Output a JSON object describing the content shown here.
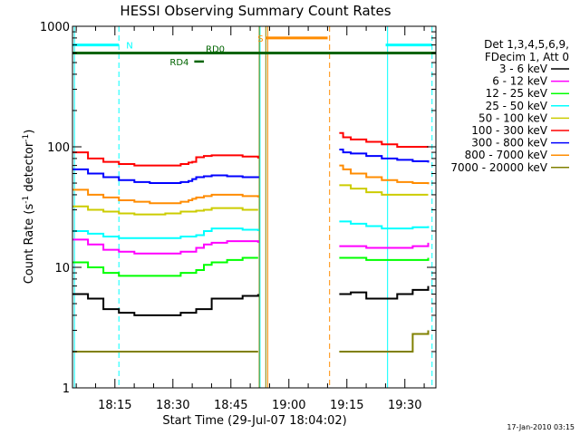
{
  "chart_data": {
    "type": "line",
    "title": "HESSI Observing Summary Count Rates",
    "xlabel": "Start Time (29-Jul-07 18:04:02)",
    "ylabel_main": "Count Rate (s",
    "ylabel_sup1": "-1",
    "ylabel_mid": " detector",
    "ylabel_sup2": "-1",
    "ylabel_end": ")",
    "yscale": "log",
    "ylim": [
      1,
      1000
    ],
    "xlim_minutes": [
      0,
      94
    ],
    "x_ticks": [
      {
        "label": "18:15",
        "min": 10.97
      },
      {
        "label": "18:30",
        "min": 25.97
      },
      {
        "label": "18:45",
        "min": 40.97
      },
      {
        "label": "19:00",
        "min": 55.97
      },
      {
        "label": "19:15",
        "min": 70.97
      },
      {
        "label": "19:30",
        "min": 85.97
      }
    ],
    "y_ticks": [
      {
        "label": "1",
        "value": 1
      },
      {
        "label": "10",
        "value": 10
      },
      {
        "label": "100",
        "value": 100
      },
      {
        "label": "1000",
        "value": 1000
      }
    ],
    "legend": {
      "header": [
        "Det 1,3,4,5,6,9,",
        "FDecim 1, Att 0"
      ],
      "placement": "right"
    },
    "series": [
      {
        "name": "3 - 6 keV",
        "color": "#000000",
        "segments": [
          {
            "x": [
              0,
              4,
              8,
              12,
              16,
              20,
              24,
              28,
              32,
              36,
              40,
              44,
              48
            ],
            "y": [
              6,
              5.5,
              4.5,
              4.2,
              4.0,
              4.0,
              4.0,
              4.2,
              4.5,
              5.5,
              5.5,
              5.8,
              6
            ]
          },
          {
            "x": [
              69,
              72,
              76,
              80,
              84,
              88,
              92
            ],
            "y": [
              6,
              6.2,
              5.5,
              5.5,
              6,
              6.5,
              7
            ]
          }
        ]
      },
      {
        "name": "6 - 12 keV",
        "color": "#ff00ff",
        "segments": [
          {
            "x": [
              0,
              4,
              8,
              12,
              16,
              20,
              24,
              28,
              32,
              34,
              36,
              40,
              44,
              48
            ],
            "y": [
              17,
              15.5,
              14,
              13.5,
              13,
              13,
              13,
              13.5,
              14.5,
              15.5,
              16,
              16.5,
              16.5,
              16
            ]
          },
          {
            "x": [
              69,
              72,
              76,
              80,
              84,
              88,
              92
            ],
            "y": [
              15,
              15,
              14.5,
              14.5,
              14.5,
              15,
              16
            ]
          }
        ]
      },
      {
        "name": "12 - 25 keV",
        "color": "#00ff00",
        "segments": [
          {
            "x": [
              0,
              4,
              8,
              12,
              16,
              20,
              24,
              28,
              32,
              34,
              36,
              40,
              44,
              48
            ],
            "y": [
              11,
              10,
              9,
              8.5,
              8.5,
              8.5,
              8.5,
              9,
              9.5,
              10.5,
              11,
              11.5,
              12,
              12
            ]
          },
          {
            "x": [
              69,
              72,
              76,
              80,
              84,
              88,
              92
            ],
            "y": [
              12,
              12,
              11.5,
              11.5,
              11.5,
              11.5,
              12
            ]
          }
        ]
      },
      {
        "name": "25 - 50 keV",
        "color": "#00ffff",
        "segments": [
          {
            "x": [
              0,
              4,
              8,
              12,
              16,
              20,
              24,
              28,
              32,
              34,
              36,
              40,
              44,
              48
            ],
            "y": [
              20,
              19,
              18,
              17.5,
              17.5,
              17.5,
              17.5,
              18,
              18.5,
              20,
              21,
              21,
              20.5,
              20
            ]
          },
          {
            "x": [
              69,
              72,
              76,
              80,
              84,
              88,
              92
            ],
            "y": [
              24,
              23,
              22,
              21,
              21,
              21.5,
              22
            ]
          }
        ]
      },
      {
        "name": "50 - 100 keV",
        "color": "#cccc00",
        "segments": [
          {
            "x": [
              0,
              4,
              8,
              12,
              16,
              20,
              24,
              28,
              32,
              34,
              36,
              40,
              44,
              48
            ],
            "y": [
              32,
              30,
              29,
              28,
              27.5,
              27.5,
              28,
              29,
              29.5,
              30,
              31,
              31,
              30,
              30
            ]
          },
          {
            "x": [
              69,
              72,
              76,
              80,
              84,
              88,
              92
            ],
            "y": [
              48,
              45,
              42,
              40,
              40,
              40,
              40
            ]
          }
        ]
      },
      {
        "name": "100 - 300 keV",
        "color": "#ff0000",
        "segments": [
          {
            "x": [
              0,
              4,
              8,
              12,
              16,
              20,
              24,
              28,
              30,
              31,
              32,
              34,
              36,
              40,
              44,
              48
            ],
            "y": [
              90,
              80,
              75,
              72,
              70,
              70,
              70,
              72,
              74,
              75,
              82,
              84,
              85,
              85,
              83,
              80
            ]
          },
          {
            "x": [
              69,
              70,
              72,
              76,
              80,
              84,
              88,
              92
            ],
            "y": [
              130,
              120,
              115,
              110,
              105,
              100,
              100,
              100
            ]
          }
        ]
      },
      {
        "name": "300 - 800 keV",
        "color": "#0000ff",
        "segments": [
          {
            "x": [
              0,
              4,
              8,
              12,
              16,
              20,
              24,
              28,
              30,
              31,
              32,
              34,
              36,
              40,
              44,
              48
            ],
            "y": [
              65,
              60,
              56,
              53,
              51,
              50,
              50,
              51,
              52,
              54,
              56,
              57,
              58,
              57,
              56,
              55
            ]
          },
          {
            "x": [
              69,
              70,
              72,
              76,
              80,
              84,
              88,
              92
            ],
            "y": [
              95,
              90,
              88,
              84,
              80,
              78,
              76,
              74
            ]
          }
        ]
      },
      {
        "name": "800 - 7000 keV",
        "color": "#ff8c00",
        "segments": [
          {
            "x": [
              0,
              4,
              8,
              12,
              16,
              20,
              24,
              28,
              30,
              31,
              32,
              34,
              36,
              40,
              44,
              48
            ],
            "y": [
              44,
              40,
              38,
              36,
              35,
              34,
              34,
              35,
              36,
              37,
              38,
              39,
              40,
              40,
              39,
              38
            ]
          },
          {
            "x": [
              69,
              70,
              72,
              76,
              80,
              84,
              88,
              92
            ],
            "y": [
              70,
              65,
              60,
              56,
              53,
              51,
              50,
              49
            ]
          }
        ]
      },
      {
        "name": "7000 - 20000 keV",
        "color": "#808000",
        "segments": [
          {
            "x": [
              0,
              4,
              8,
              12,
              16,
              20,
              24,
              28,
              32,
              36,
              40,
              44,
              48
            ],
            "y": [
              2,
              2,
              2,
              2,
              2,
              2,
              2,
              2,
              2,
              2,
              2,
              2,
              2
            ]
          },
          {
            "x": [
              69,
              72,
              76,
              80,
              84,
              88,
              92
            ],
            "y": [
              2,
              2,
              2,
              2,
              2,
              2.8,
              3
            ]
          }
        ]
      }
    ],
    "annotations": [
      {
        "label": "N",
        "color": "#00ffff",
        "y": 700,
        "x_start": 0,
        "x_end": 12,
        "x2_start": 81,
        "x2_end": 93
      },
      {
        "label": "S",
        "color": "#ff8c00",
        "y": 800,
        "x_start": 50,
        "x_end": 66
      },
      {
        "label": "RD0",
        "color": "#006400",
        "y": 600,
        "x_start": 0,
        "x_end": 94
      },
      {
        "label": "RD4",
        "color": "#006400",
        "y": 510,
        "x_start": 31.5,
        "x_end": 34
      }
    ],
    "vertical_lines": [
      {
        "x": 0.5,
        "color": "#00ffff",
        "style": "solid"
      },
      {
        "x": 12,
        "color": "#00ffff",
        "style": "dashed"
      },
      {
        "x": 48.5,
        "color": "#00ffff",
        "style": "solid"
      },
      {
        "x": 50.5,
        "color": "#ff8c00",
        "style": "solid"
      },
      {
        "x": 66.5,
        "color": "#ff8c00",
        "style": "dashed"
      },
      {
        "x": 81.5,
        "color": "#00ffff",
        "style": "solid"
      },
      {
        "x": 93,
        "color": "#00ffff",
        "style": "dashed"
      },
      {
        "x": 48.3,
        "color": "#808000",
        "style": "solid"
      },
      {
        "x": 50,
        "color": "#808000",
        "style": "solid"
      }
    ]
  },
  "footer": {
    "timestamp": "17-Jan-2010 03:15"
  }
}
